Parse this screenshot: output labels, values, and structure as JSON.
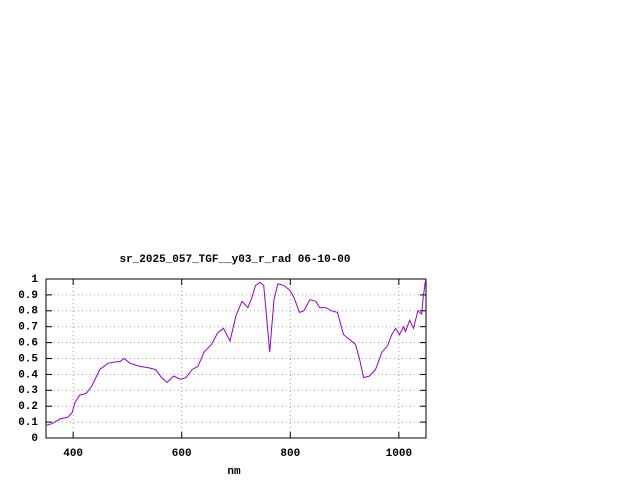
{
  "chart_data": {
    "type": "line",
    "title": "sr_2025_057_TGF__y03_r_rad 06-10-00",
    "xlabel": "nm",
    "x": [
      350,
      361,
      376,
      390,
      398,
      403,
      412,
      424,
      435,
      449,
      464,
      479,
      486,
      494,
      505,
      523,
      541,
      552,
      563,
      573,
      585,
      597,
      608,
      619,
      630,
      641,
      655,
      666,
      677,
      689,
      700,
      711,
      722,
      729,
      736,
      744,
      751,
      755,
      762,
      770,
      777,
      788,
      799,
      806,
      817,
      825,
      836,
      847,
      854,
      865,
      876,
      887,
      898,
      909,
      920,
      928,
      935,
      946,
      957,
      969,
      979,
      987,
      994,
      1001,
      1009,
      1012,
      1020,
      1027,
      1035,
      1042,
      1045,
      1049
    ],
    "series": [
      {
        "color": "#9400d3",
        "values": [
          0.08,
          0.09,
          0.12,
          0.13,
          0.16,
          0.22,
          0.27,
          0.28,
          0.33,
          0.43,
          0.47,
          0.48,
          0.48,
          0.5,
          0.47,
          0.45,
          0.44,
          0.43,
          0.38,
          0.35,
          0.39,
          0.37,
          0.38,
          0.43,
          0.45,
          0.54,
          0.59,
          0.66,
          0.69,
          0.61,
          0.77,
          0.86,
          0.82,
          0.88,
          0.96,
          0.98,
          0.96,
          0.81,
          0.54,
          0.87,
          0.97,
          0.96,
          0.93,
          0.89,
          0.79,
          0.8,
          0.87,
          0.86,
          0.82,
          0.82,
          0.8,
          0.79,
          0.65,
          0.62,
          0.59,
          0.49,
          0.38,
          0.39,
          0.43,
          0.54,
          0.58,
          0.65,
          0.69,
          0.65,
          0.7,
          0.67,
          0.74,
          0.69,
          0.8,
          0.78,
          0.89,
          0.99
        ]
      }
    ],
    "xlim": [
      350,
      1050
    ],
    "ylim": [
      0,
      1
    ],
    "xticks": [
      400,
      600,
      800,
      1000
    ],
    "yticks": [
      0,
      0.1,
      0.2,
      0.3,
      0.4,
      0.5,
      0.6,
      0.7,
      0.8,
      0.9,
      1
    ],
    "grid": true
  }
}
